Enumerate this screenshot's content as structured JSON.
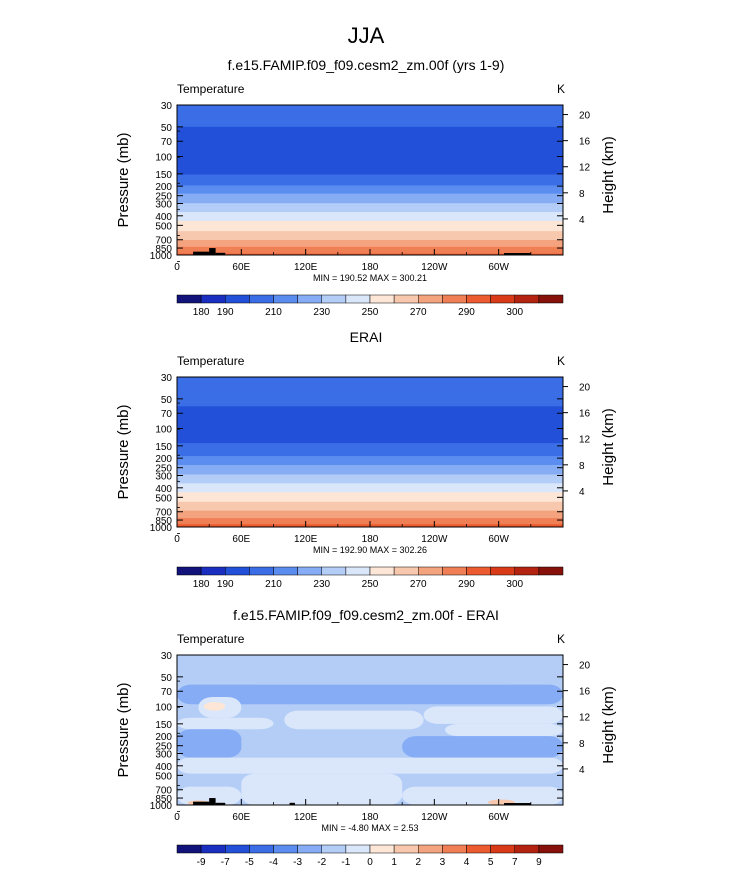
{
  "figure": {
    "season": "JJA"
  },
  "colors": {
    "temperature": [
      "#11127a",
      "#1a2ec0",
      "#2350d8",
      "#3b6ee6",
      "#5b8df0",
      "#86acf5",
      "#b3cdf7",
      "#dae7fb",
      "#fde6d6",
      "#f7c8ad",
      "#f4a37f",
      "#f07f55",
      "#ec5b2f",
      "#d93a17",
      "#b4230f",
      "#85110a"
    ],
    "difference": [
      "#11127a",
      "#1a2ec0",
      "#2350d8",
      "#3b6ee6",
      "#5b8df0",
      "#86acf5",
      "#b3cdf7",
      "#dae7fb",
      "#fde6d6",
      "#f7c8ad",
      "#f4a37f",
      "#f07f55",
      "#ec5b2f",
      "#d93a17",
      "#b4230f",
      "#85110a"
    ],
    "land": "#000000"
  },
  "labelbar_temperature": [
    "180",
    "190",
    "210",
    "230",
    "250",
    "270",
    "290",
    "300"
  ],
  "labelbar_difference": [
    "-9",
    "-7",
    "-5",
    "-4",
    "-3",
    "-2",
    "-1",
    "0",
    "1",
    "2",
    "3",
    "4",
    "5",
    "7",
    "9"
  ],
  "chart_data": [
    {
      "type": "heatmap",
      "title": "f.e15.FAMIP.f09_f09.cesm2_zm.00f (yrs 1-9)",
      "left_label": "Temperature",
      "right_label": "K",
      "ylabel": "Pressure (mb)",
      "ylabel_right": "Height (km)",
      "x_ticks": [
        "0",
        "60E",
        "120E",
        "180",
        "120W",
        "60W"
      ],
      "y_ticks": [
        "30",
        "50",
        "70",
        "100",
        "150",
        "200",
        "250",
        "300",
        "400",
        "500",
        "700",
        "850",
        "1000"
      ],
      "y_right_ticks": [
        "4",
        "8",
        "12",
        "16",
        "20"
      ],
      "stats": "MIN = 190.52   MAX = 300.21",
      "min": 190.52,
      "max": 300.21,
      "profile": [
        [
          30,
          205
        ],
        [
          50,
          200
        ],
        [
          70,
          194
        ],
        [
          100,
          192
        ],
        [
          150,
          199
        ],
        [
          200,
          211
        ],
        [
          250,
          222
        ],
        [
          300,
          230
        ],
        [
          400,
          244
        ],
        [
          500,
          255
        ],
        [
          600,
          262
        ],
        [
          700,
          270
        ],
        [
          850,
          282
        ],
        [
          1000,
          292
        ]
      ],
      "land_blocks": [
        [
          15,
          30,
          1000,
          925
        ],
        [
          30,
          36,
          1000,
          850
        ],
        [
          36,
          45,
          1000,
          950
        ],
        [
          305,
          330,
          1000,
          955
        ]
      ]
    },
    {
      "type": "heatmap",
      "title": "ERAI",
      "left_label": "Temperature",
      "right_label": "K",
      "ylabel": "Pressure (mb)",
      "ylabel_right": "Height (km)",
      "x_ticks": [
        "0",
        "60E",
        "120E",
        "180",
        "120W",
        "60W"
      ],
      "y_ticks": [
        "30",
        "50",
        "70",
        "100",
        "150",
        "200",
        "250",
        "300",
        "400",
        "500",
        "700",
        "850",
        "1000"
      ],
      "y_right_ticks": [
        "4",
        "8",
        "12",
        "16",
        "20"
      ],
      "stats": "MIN = 192.90   MAX = 302.26",
      "min": 192.9,
      "max": 302.26,
      "profile": [
        [
          30,
          208
        ],
        [
          50,
          203
        ],
        [
          70,
          197
        ],
        [
          100,
          194
        ],
        [
          150,
          201
        ],
        [
          200,
          212
        ],
        [
          250,
          223
        ],
        [
          300,
          231
        ],
        [
          400,
          245
        ],
        [
          500,
          256
        ],
        [
          600,
          263
        ],
        [
          700,
          271
        ],
        [
          850,
          283
        ],
        [
          1000,
          294
        ]
      ],
      "land_blocks": []
    },
    {
      "type": "heatmap",
      "title": "f.e15.FAMIP.f09_f09.cesm2_zm.00f - ERAI",
      "left_label": "Temperature",
      "right_label": "K",
      "ylabel": "Pressure (mb)",
      "ylabel_right": "Height (km)",
      "x_ticks": [
        "0",
        "60E",
        "120E",
        "180",
        "120W",
        "60W"
      ],
      "y_ticks": [
        "30",
        "50",
        "70",
        "100",
        "150",
        "200",
        "250",
        "300",
        "400",
        "500",
        "700",
        "850",
        "1000"
      ],
      "y_right_ticks": [
        "4",
        "8",
        "12",
        "16",
        "20"
      ],
      "stats": "MIN = -4.80   MAX =  2.53",
      "min": -4.8,
      "max": 2.53,
      "background_level": -2,
      "regions": [
        {
          "lon": [
            0,
            360
          ],
          "p": [
            60,
            95
          ],
          "level": -3
        },
        {
          "lon": [
            20,
            60
          ],
          "p": [
            80,
            130
          ],
          "level": -1
        },
        {
          "lon": [
            25,
            45
          ],
          "p": [
            90,
            110
          ],
          "level": 0
        },
        {
          "lon": [
            0,
            90
          ],
          "p": [
            130,
            170
          ],
          "level": -1
        },
        {
          "lon": [
            0,
            60
          ],
          "p": [
            170,
            330
          ],
          "level": -3
        },
        {
          "lon": [
            100,
            230
          ],
          "p": [
            110,
            170
          ],
          "level": -1
        },
        {
          "lon": [
            230,
            360
          ],
          "p": [
            100,
            150
          ],
          "level": -1
        },
        {
          "lon": [
            250,
            370
          ],
          "p": [
            150,
            200
          ],
          "level": -1
        },
        {
          "lon": [
            210,
            370
          ],
          "p": [
            200,
            330
          ],
          "level": -3
        },
        {
          "lon": [
            0,
            360
          ],
          "p": [
            330,
            480
          ],
          "level": -1
        },
        {
          "lon": [
            60,
            210
          ],
          "p": [
            480,
            1000
          ],
          "level": -1
        },
        {
          "lon": [
            0,
            60
          ],
          "p": [
            650,
            1000
          ],
          "level": -1
        },
        {
          "lon": [
            210,
            360
          ],
          "p": [
            650,
            1000
          ],
          "level": -1
        },
        {
          "lon": [
            10,
            30
          ],
          "p": [
            900,
            1000
          ],
          "level": 1
        },
        {
          "lon": [
            290,
            315
          ],
          "p": [
            880,
            1000
          ],
          "level": 1
        }
      ],
      "land_blocks": [
        [
          15,
          30,
          1000,
          925
        ],
        [
          30,
          36,
          1000,
          850
        ],
        [
          36,
          45,
          1000,
          950
        ],
        [
          105,
          110,
          1000,
          950
        ],
        [
          305,
          330,
          1000,
          955
        ]
      ]
    }
  ]
}
